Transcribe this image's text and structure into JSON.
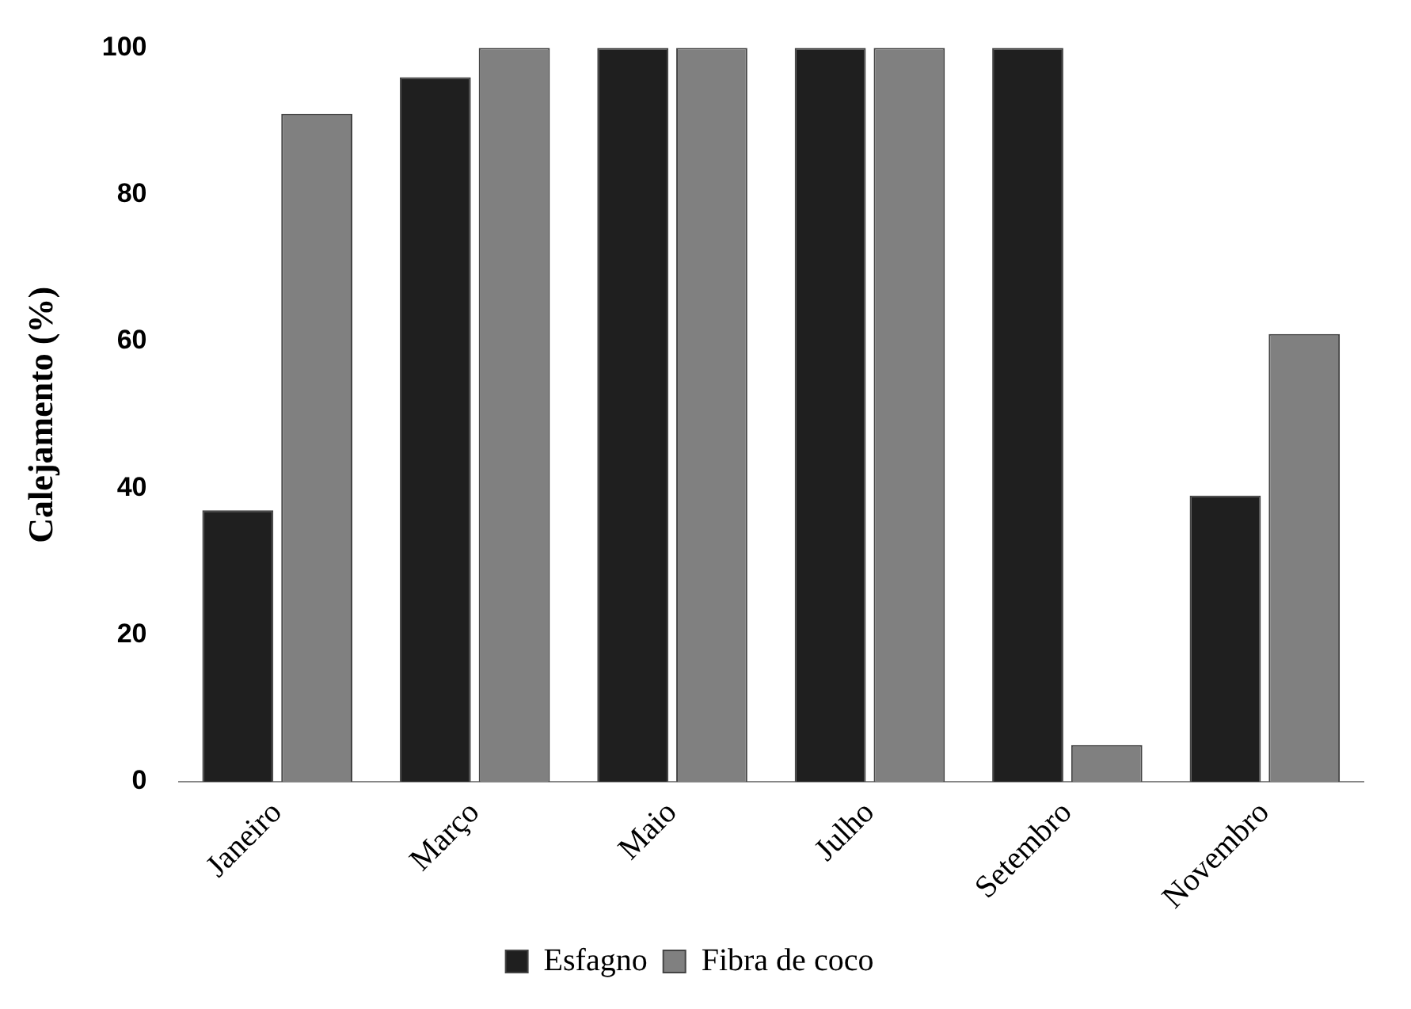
{
  "chart_data": {
    "type": "bar",
    "ylabel": "Calejamento (%)",
    "categories": [
      "Janeiro",
      "Março",
      "Maio",
      "Julho",
      "Setembro",
      "Novembro"
    ],
    "series": [
      {
        "name": "Esfagno",
        "color": "#1f1f1f",
        "values": [
          37,
          96,
          100,
          100,
          100,
          39
        ]
      },
      {
        "name": "Fibra de coco",
        "color": "#808080",
        "values": [
          91,
          100,
          100,
          100,
          5,
          61
        ]
      }
    ],
    "ylim": [
      0,
      100
    ],
    "yticks": [
      0,
      20,
      40,
      60,
      80,
      100
    ],
    "grid": false,
    "legend": "bottom"
  }
}
